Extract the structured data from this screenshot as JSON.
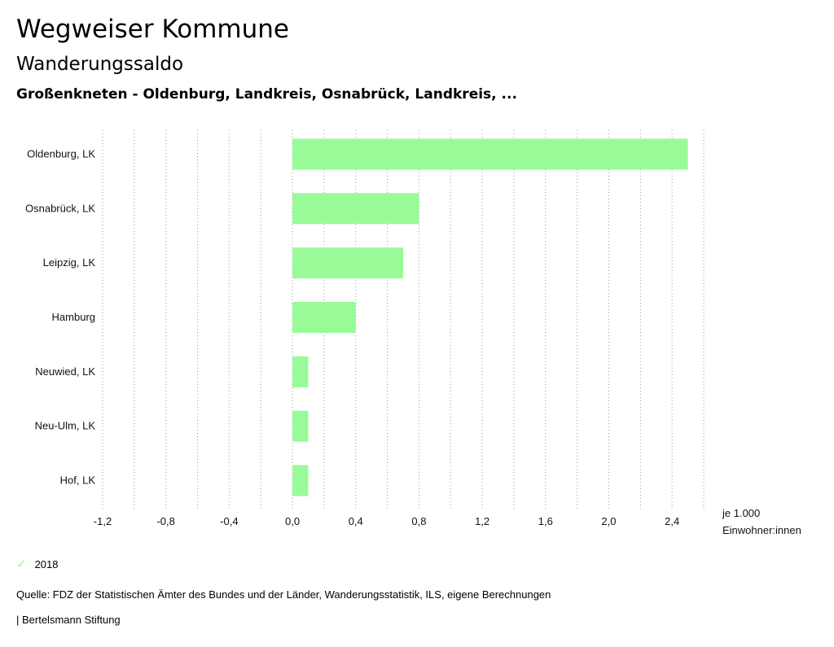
{
  "header": {
    "title": "Wegweiser Kommune",
    "subtitle": "Wanderungssaldo",
    "region": "Großenkneten - Oldenburg, Landkreis, Osnabrück, Landkreis, ..."
  },
  "chart_data": {
    "type": "bar",
    "orientation": "horizontal",
    "categories": [
      "Oldenburg, LK",
      "Osnabrück, LK",
      "Leipzig, LK",
      "Hamburg",
      "Neuwied, LK",
      "Neu-Ulm, LK",
      "Hof, LK"
    ],
    "series": [
      {
        "name": "2018",
        "values": [
          2.5,
          0.8,
          0.7,
          0.4,
          0.1,
          0.1,
          0.1
        ]
      }
    ],
    "xlim": [
      -1.2,
      2.6
    ],
    "ticks": [
      -1.2,
      -0.8,
      -0.4,
      0.0,
      0.4,
      0.8,
      1.2,
      1.6,
      2.0,
      2.4
    ],
    "tick_labels": [
      "-1,2",
      "-0,8",
      "-0,4",
      "0,0",
      "0,4",
      "0,8",
      "1,2",
      "1,6",
      "2,0",
      "2,4"
    ],
    "grid": true,
    "unit_label_line1": "je 1.000",
    "unit_label_line2": "Einwohner:innen",
    "legend_position": "bottom-left"
  },
  "legend": {
    "label": "2018",
    "icon": "check-icon",
    "color": "#98fb98"
  },
  "footer": {
    "source": "Quelle: FDZ der Statistischen Ämter des Bundes und der Länder, Wanderungsstatistik, ILS, eigene Berechnungen",
    "publisher": "| Bertelsmann Stiftung"
  },
  "colors": {
    "bar": "#98fb98",
    "grid": "#999999"
  }
}
